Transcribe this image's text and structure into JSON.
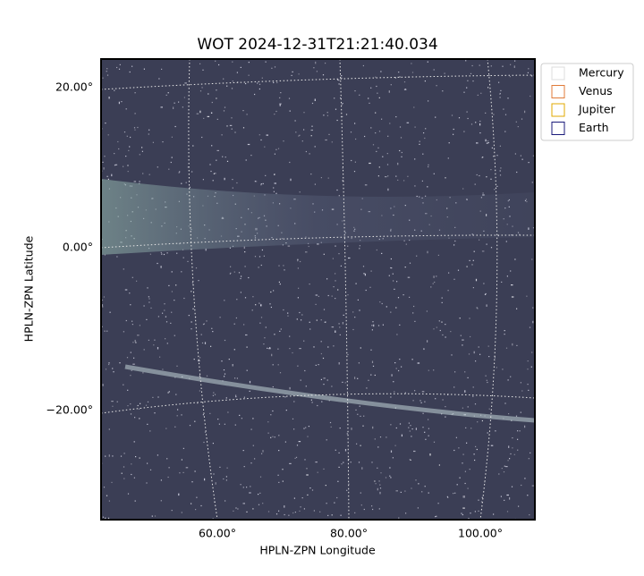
{
  "title": "WOT 2024-12-31T21:21:40.034",
  "x_axis": {
    "label": "HPLN-ZPN Longitude",
    "ticks": [
      "60.00°",
      "80.00°",
      "100.00°"
    ]
  },
  "y_axis": {
    "label": "HPLN-ZPN Latitude",
    "ticks": [
      "20.00°",
      "0.00°",
      "−20.00°"
    ]
  },
  "legend": [
    {
      "label": "Mercury",
      "color": "#dddddd"
    },
    {
      "label": "Venus",
      "color": "#e07b39"
    },
    {
      "label": "Jupiter",
      "color": "#e0a800"
    },
    {
      "label": "Earth",
      "color": "#1a1a7a"
    }
  ]
}
